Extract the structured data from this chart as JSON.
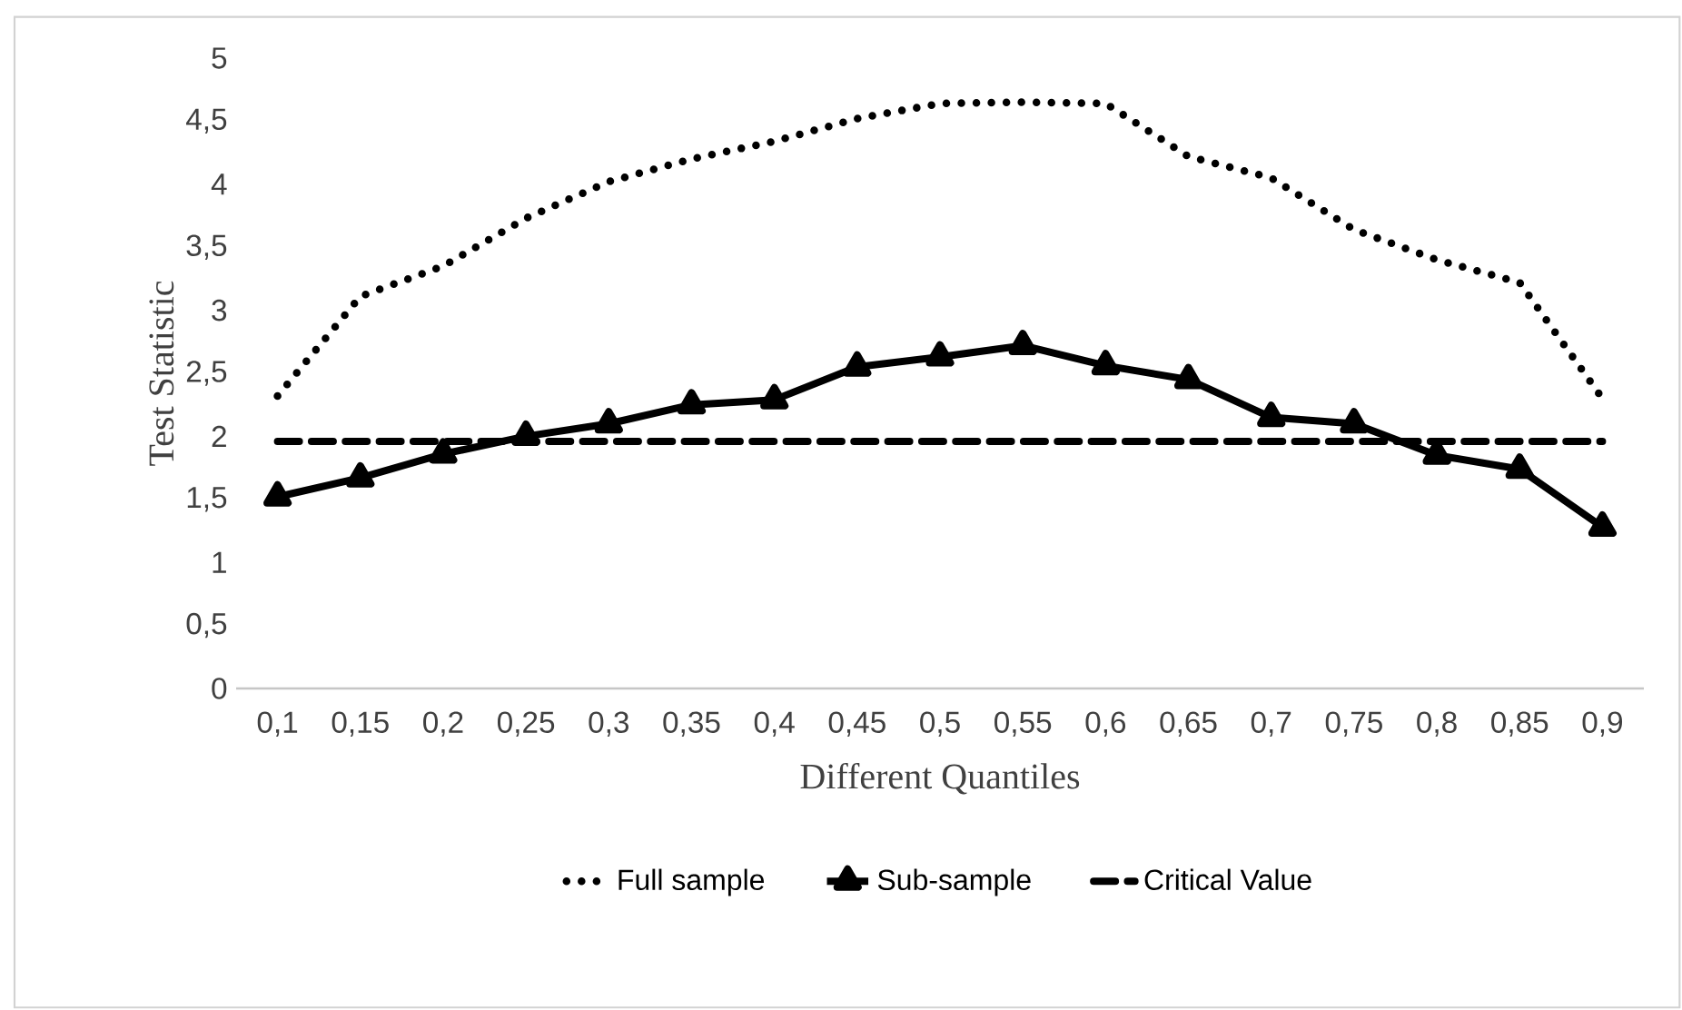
{
  "chart_data": {
    "type": "line",
    "xlabel": "Different Quantiles",
    "ylabel": "Test Statistic",
    "categories": [
      "0,1",
      "0,15",
      "0,2",
      "0,25",
      "0,3",
      "0,35",
      "0,4",
      "0,45",
      "0,5",
      "0,55",
      "0,6",
      "0,65",
      "0,7",
      "0,75",
      "0,8",
      "0,85",
      "0,9"
    ],
    "series": [
      {
        "name": "Full sample",
        "color": "#000000",
        "line_style": "dotted",
        "marker": "none",
        "values": [
          2.32,
          3.11,
          3.35,
          3.73,
          4.02,
          4.2,
          4.34,
          4.52,
          4.64,
          4.65,
          4.64,
          4.22,
          4.05,
          3.64,
          3.4,
          3.22,
          2.3
        ]
      },
      {
        "name": "Sub-sample",
        "color": "#000000",
        "line_style": "solid",
        "marker": "triangle",
        "values": [
          1.52,
          1.67,
          1.86,
          2.0,
          2.1,
          2.25,
          2.29,
          2.55,
          2.63,
          2.72,
          2.56,
          2.45,
          2.15,
          2.1,
          1.85,
          1.74,
          1.28
        ]
      },
      {
        "name": "Critical Value",
        "color": "#000000",
        "line_style": "dashed",
        "marker": "none",
        "values": [
          1.96,
          1.96,
          1.96,
          1.96,
          1.96,
          1.96,
          1.96,
          1.96,
          1.96,
          1.96,
          1.96,
          1.96,
          1.96,
          1.96,
          1.96,
          1.96,
          1.96
        ]
      }
    ],
    "ylim": [
      0,
      5
    ],
    "yticks": [
      0,
      {
        "value": 0.5,
        "label": "0,5"
      },
      1,
      {
        "value": 1.5,
        "label": "1,5"
      },
      2,
      {
        "value": 2.5,
        "label": "2,5"
      },
      3,
      {
        "value": 3.5,
        "label": "3,5"
      },
      4,
      {
        "value": 4.5,
        "label": "4,5"
      },
      5
    ],
    "grid": false,
    "legend": "bottom"
  }
}
